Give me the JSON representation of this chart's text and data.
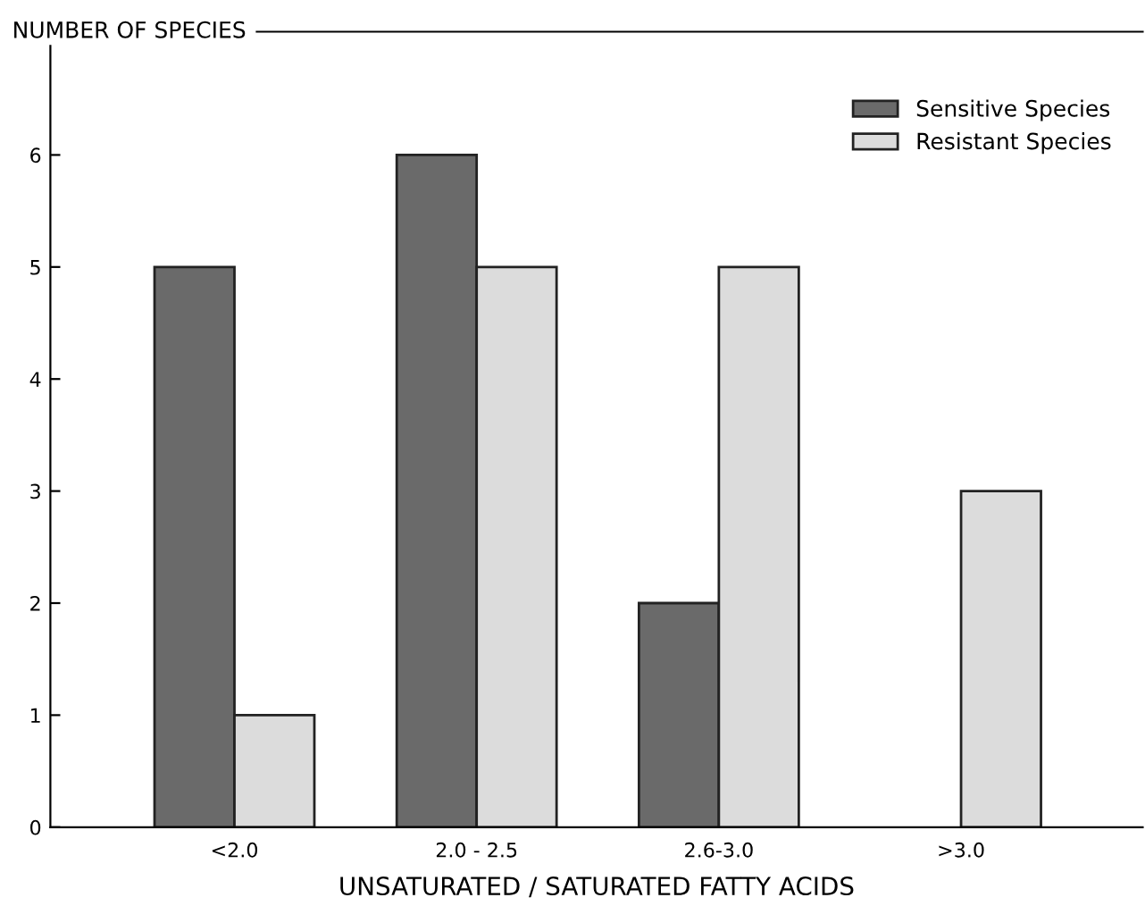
{
  "chart_data": {
    "type": "bar",
    "ylabel": "NUMBER OF SPECIES",
    "xlabel": "UNSATURATED / SATURATED FATTY ACIDS",
    "categories": [
      "<2.0",
      "2.0 - 2.5",
      "2.6-3.0",
      ">3.0"
    ],
    "series": [
      {
        "name": "Sensitive Species",
        "color": "#6a6a6a",
        "values": [
          5,
          6,
          2,
          null
        ]
      },
      {
        "name": "Resistant Species",
        "color": "#dcdcdc",
        "values": [
          1,
          5,
          5,
          3
        ]
      }
    ],
    "ylim": [
      0,
      7.1
    ],
    "yticks": [
      0,
      1,
      2,
      3,
      4,
      5,
      6
    ],
    "grid": false,
    "legend": "top right"
  }
}
